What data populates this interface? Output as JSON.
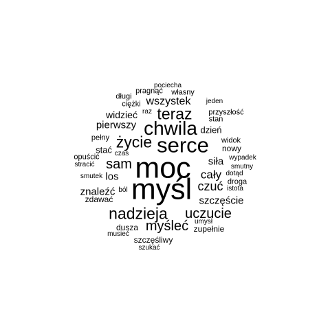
{
  "colors": {
    "background": "#ffffff",
    "text": "#000000"
  },
  "words": [
    "pociecha",
    "pragnąć",
    "długi",
    "własny",
    "ciężki",
    "jeden",
    "wszystek",
    "teraz",
    "widzieć",
    "raz",
    "przyszłość",
    "stan",
    "pierwszy",
    "chwila",
    "dzień",
    "pełny",
    "życie",
    "serce",
    "widok",
    "stać",
    "nowy",
    "czas",
    "opuścić",
    "siła",
    "wypadek",
    "sam",
    "stracić",
    "moc",
    "cały",
    "smutny",
    "dotąd",
    "smutek",
    "los",
    "droga",
    "myśl",
    "czuć",
    "znaleźć",
    "ból",
    "istota",
    "zdawać",
    "szczęście",
    "nadzieja",
    "uczucie",
    "umysł",
    "myśleć",
    "dusza",
    "zupełnie",
    "musieć",
    "szczęśliwy",
    "szukać"
  ]
}
